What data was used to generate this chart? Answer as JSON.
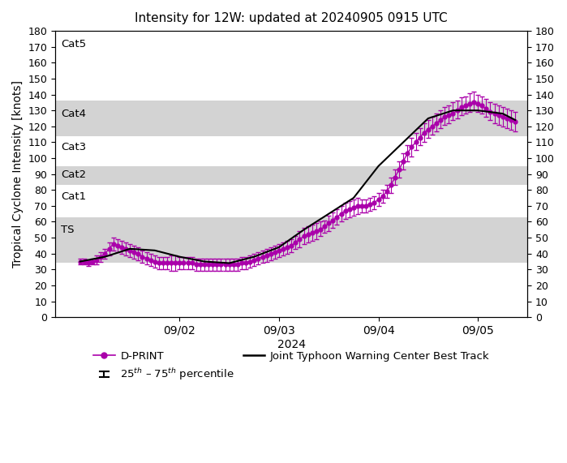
{
  "title": "Intensity for 12W: updated at 20240905 0915 UTC",
  "xlabel": "2024",
  "ylabel": "Tropical Cyclone Intensity [knots]",
  "ylim": [
    0,
    180
  ],
  "yticks": [
    0,
    10,
    20,
    30,
    40,
    50,
    60,
    70,
    80,
    90,
    100,
    110,
    120,
    130,
    140,
    150,
    160,
    170,
    180
  ],
  "category_bands": [
    {
      "name": "TS",
      "ymin": 34,
      "ymax": 63,
      "color": "#d3d3d3"
    },
    {
      "name": "Cat1",
      "ymin": 64,
      "ymax": 82,
      "color": "#ffffff"
    },
    {
      "name": "Cat2",
      "ymin": 83,
      "ymax": 95,
      "color": "#d3d3d3"
    },
    {
      "name": "Cat3",
      "ymin": 96,
      "ymax": 113,
      "color": "#ffffff"
    },
    {
      "name": "Cat4",
      "ymin": 114,
      "ymax": 136,
      "color": "#d3d3d3"
    },
    {
      "name": "Cat5",
      "ymin": 137,
      "ymax": 180,
      "color": "#ffffff"
    }
  ],
  "category_label_positions": [
    {
      "name": "TS",
      "y": 58
    },
    {
      "name": "Cat1",
      "y": 79
    },
    {
      "name": "Cat2",
      "y": 93
    },
    {
      "name": "Cat3",
      "y": 110
    },
    {
      "name": "Cat4",
      "y": 131
    },
    {
      "name": "Cat5",
      "y": 175
    }
  ],
  "dprint_color": "#aa00aa",
  "jtwc_color": "#000000",
  "dprint_times": [
    0,
    1,
    2,
    3,
    4,
    5,
    6,
    7,
    8,
    9,
    10,
    11,
    12,
    13,
    14,
    15,
    16,
    17,
    18,
    19,
    20,
    21,
    22,
    23,
    24,
    25,
    26,
    27,
    28,
    29,
    30,
    31,
    32,
    33,
    34,
    35,
    36,
    37,
    38,
    39,
    40,
    41,
    42,
    43,
    44,
    45,
    46,
    47,
    48,
    49,
    50,
    51,
    52,
    53,
    54,
    55,
    56,
    57,
    58,
    59,
    60,
    61,
    62,
    63,
    64,
    65,
    66,
    67,
    68,
    69,
    70,
    71,
    72,
    73,
    74,
    75,
    76,
    77,
    78,
    79,
    80,
    81,
    82,
    83,
    84,
    85,
    86,
    87,
    88,
    89,
    90,
    91,
    92,
    93,
    94,
    95,
    96,
    97,
    98,
    99,
    100,
    101,
    102,
    103,
    104,
    105
  ],
  "dprint_median": [
    35,
    35,
    34,
    35,
    36,
    38,
    40,
    43,
    46,
    45,
    44,
    43,
    42,
    41,
    40,
    38,
    37,
    36,
    35,
    34,
    34,
    34,
    34,
    34,
    34,
    34,
    34,
    34,
    33,
    33,
    33,
    33,
    33,
    33,
    33,
    33,
    33,
    33,
    33,
    34,
    34,
    35,
    36,
    37,
    38,
    39,
    40,
    41,
    42,
    43,
    44,
    45,
    47,
    49,
    51,
    52,
    53,
    54,
    55,
    57,
    59,
    61,
    63,
    65,
    67,
    68,
    69,
    70,
    70,
    70,
    71,
    72,
    74,
    76,
    79,
    83,
    88,
    93,
    98,
    103,
    107,
    110,
    113,
    116,
    118,
    120,
    122,
    124,
    126,
    127,
    128,
    130,
    132,
    133,
    134,
    135,
    134,
    133,
    131,
    129,
    128,
    127,
    126,
    125,
    124,
    123
  ],
  "dprint_q25": [
    33,
    33,
    32,
    33,
    33,
    35,
    37,
    39,
    42,
    41,
    40,
    39,
    38,
    37,
    36,
    34,
    33,
    32,
    31,
    30,
    30,
    30,
    29,
    29,
    30,
    30,
    30,
    30,
    29,
    29,
    29,
    29,
    29,
    29,
    29,
    29,
    29,
    29,
    29,
    30,
    30,
    31,
    32,
    33,
    34,
    35,
    36,
    37,
    38,
    39,
    40,
    41,
    43,
    44,
    46,
    47,
    48,
    49,
    51,
    53,
    54,
    56,
    58,
    60,
    62,
    63,
    64,
    65,
    66,
    66,
    67,
    68,
    70,
    72,
    75,
    78,
    83,
    88,
    93,
    98,
    101,
    105,
    108,
    110,
    113,
    115,
    117,
    119,
    121,
    122,
    124,
    125,
    127,
    128,
    129,
    130,
    129,
    128,
    126,
    124,
    122,
    121,
    120,
    119,
    118,
    117
  ],
  "dprint_q75": [
    37,
    37,
    36,
    37,
    39,
    41,
    43,
    47,
    50,
    49,
    48,
    47,
    46,
    45,
    44,
    42,
    41,
    40,
    39,
    38,
    38,
    38,
    39,
    39,
    38,
    38,
    38,
    38,
    37,
    37,
    37,
    37,
    37,
    37,
    37,
    37,
    37,
    37,
    37,
    38,
    38,
    39,
    40,
    41,
    42,
    43,
    44,
    45,
    46,
    47,
    48,
    49,
    51,
    54,
    56,
    57,
    58,
    59,
    60,
    61,
    64,
    66,
    68,
    70,
    72,
    73,
    74,
    75,
    74,
    74,
    75,
    76,
    78,
    80,
    83,
    88,
    93,
    98,
    103,
    108,
    113,
    116,
    119,
    122,
    124,
    126,
    128,
    130,
    132,
    133,
    135,
    136,
    138,
    139,
    141,
    142,
    140,
    139,
    137,
    135,
    134,
    133,
    132,
    131,
    130,
    129
  ],
  "jtwc_times": [
    0,
    6,
    12,
    18,
    24,
    30,
    36,
    42,
    48,
    54,
    60,
    66,
    72,
    78,
    84,
    90,
    96,
    102,
    105
  ],
  "jtwc_values": [
    35,
    38,
    43,
    42,
    38,
    35,
    34,
    38,
    44,
    55,
    65,
    75,
    95,
    110,
    125,
    130,
    130,
    128,
    124
  ],
  "xlim": [
    -6,
    108
  ],
  "x_tick_hours": [
    24,
    48,
    72,
    96
  ],
  "x_tick_labels": [
    "09/02",
    "09/03",
    "09/04",
    "09/05"
  ],
  "background_color": "#ffffff",
  "legend_dprint_label": "D-PRINT",
  "legend_pct_label": "25$^{th}$ – 75$^{th}$ percentile",
  "legend_jtwc_label": "Joint Typhoon Warning Center Best Track"
}
